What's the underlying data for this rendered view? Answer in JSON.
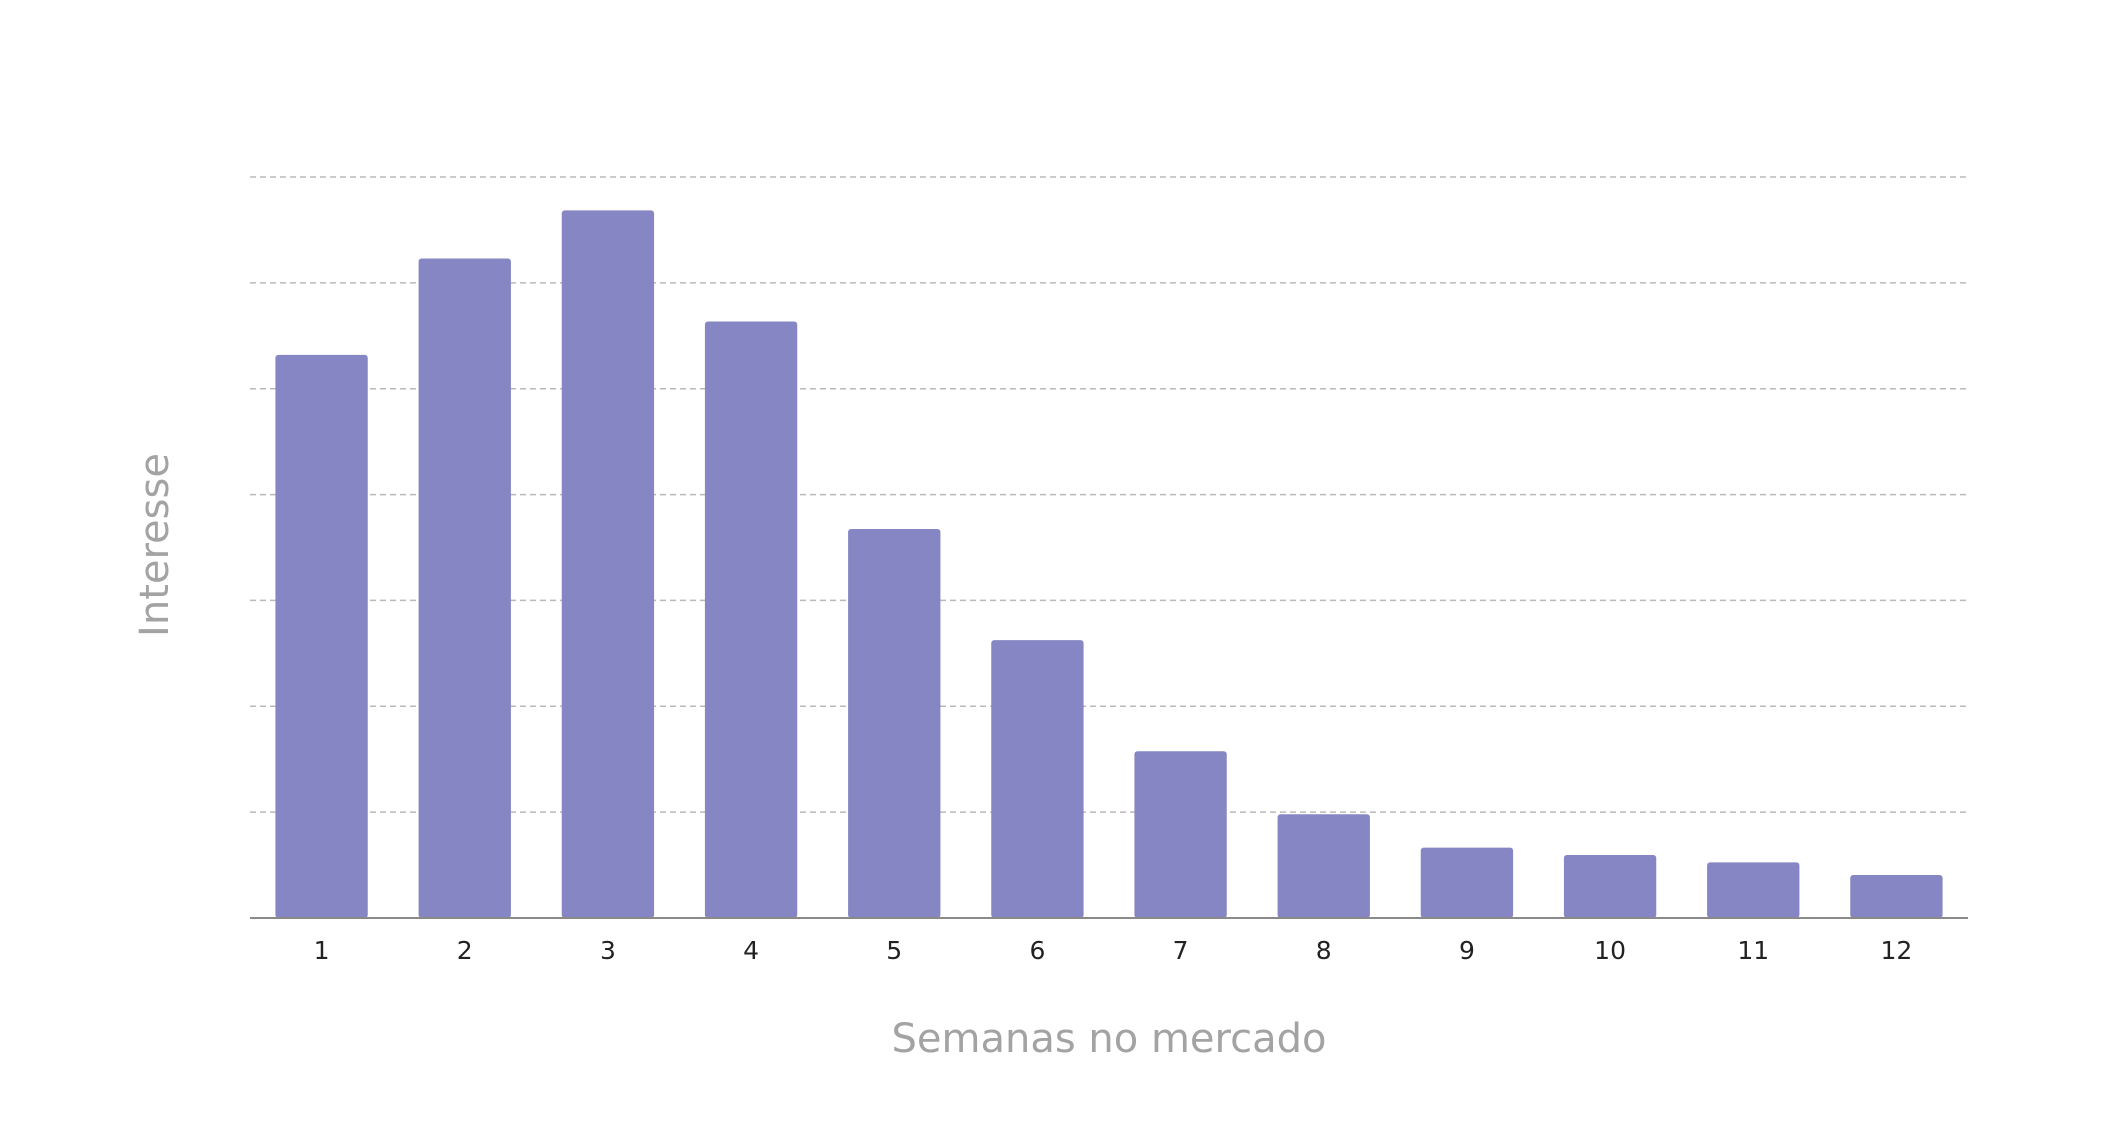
{
  "chart_data": {
    "type": "bar",
    "title": "",
    "xlabel": "Semanas no mercado",
    "ylabel": "Interesse",
    "categories": [
      "1",
      "2",
      "3",
      "4",
      "5",
      "6",
      "7",
      "8",
      "9",
      "10",
      "11",
      "12"
    ],
    "values": [
      76,
      89,
      95.5,
      80.5,
      52.5,
      37.5,
      22.5,
      14,
      9.5,
      8.5,
      7.5,
      5.8
    ],
    "ylim": [
      0,
      100
    ],
    "grid": true,
    "y_tick_labels_shown": false,
    "bar_color": "#8686c4"
  }
}
